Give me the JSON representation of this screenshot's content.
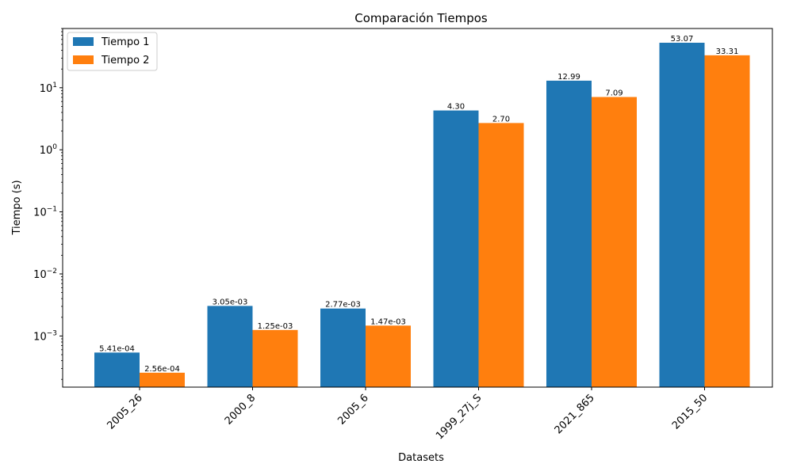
{
  "chart_data": {
    "type": "bar",
    "title": "Comparación Tiempos",
    "xlabel": "Datasets",
    "ylabel": "Tiempo (s)",
    "yscale": "log",
    "ylim": [
      0.00015,
      90
    ],
    "yticks": [
      {
        "value": 0.001,
        "base": "10",
        "exp": "−3"
      },
      {
        "value": 0.01,
        "base": "10",
        "exp": "−2"
      },
      {
        "value": 0.1,
        "base": "10",
        "exp": "−1"
      },
      {
        "value": 1,
        "base": "10",
        "exp": "0"
      },
      {
        "value": 10,
        "base": "10",
        "exp": "1"
      }
    ],
    "categories": [
      "2005_26",
      "2000_8",
      "2005_6",
      "1999_27j_S",
      "2021_865",
      "2015_50"
    ],
    "series": [
      {
        "name": "Tiempo 1",
        "color": "#1f77b4",
        "values": [
          0.000541,
          0.00305,
          0.00277,
          4.3,
          12.99,
          53.07
        ],
        "labels": [
          "5.41e-04",
          "3.05e-03",
          "2.77e-03",
          "4.30",
          "12.99",
          "53.07"
        ]
      },
      {
        "name": "Tiempo 2",
        "color": "#ff7f0e",
        "values": [
          0.000256,
          0.00125,
          0.00147,
          2.7,
          7.09,
          33.31
        ],
        "labels": [
          "2.56e-04",
          "1.25e-03",
          "1.47e-03",
          "2.70",
          "7.09",
          "33.31"
        ]
      }
    ],
    "legend_position": "top-left",
    "grid": false
  }
}
